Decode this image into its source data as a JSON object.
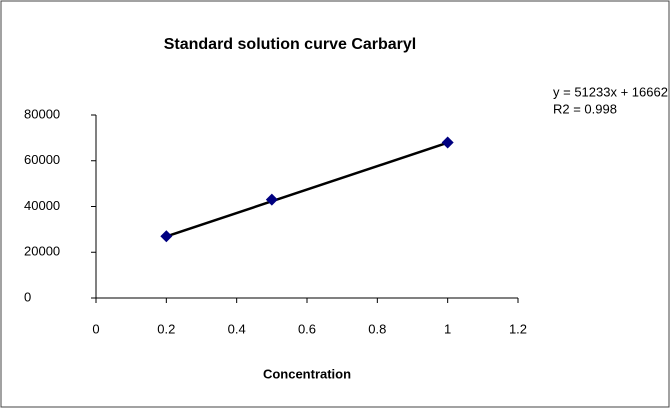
{
  "chart_data": {
    "type": "scatter",
    "title": "Standard solution curve Carbaryl",
    "x_label": "Concentration",
    "x": [
      0.2,
      0.5,
      1
    ],
    "series": [
      {
        "name": "Carbaryl",
        "color": "#000080",
        "values": [
          27000,
          43000,
          68000
        ]
      }
    ],
    "trendline": {
      "slope": 51233,
      "intercept": 16662,
      "color": "#000000",
      "equation": "y = 51233x + 16662",
      "r2_label": "R2 = 0.998"
    },
    "xlim": [
      0,
      1.2
    ],
    "xticks": [
      0,
      0.2,
      0.4,
      0.6,
      0.8,
      1,
      1.2
    ],
    "ylim": [
      0,
      80000
    ],
    "yticks": [
      0,
      20000,
      40000,
      60000,
      80000
    ],
    "grid": false,
    "legend": false
  }
}
